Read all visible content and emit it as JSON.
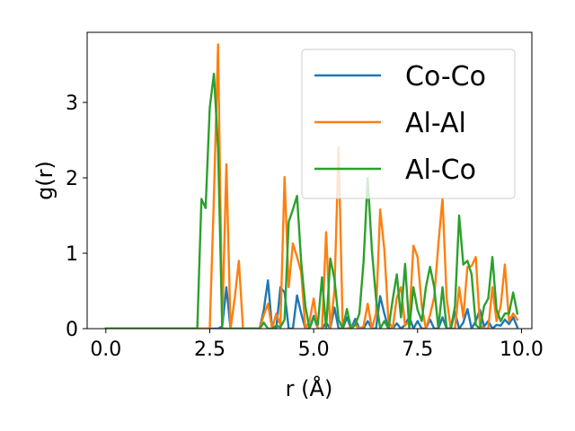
{
  "chart_data": {
    "type": "line",
    "xlabel": "r (Å)",
    "ylabel": "g(r)",
    "xlim": [
      -0.45,
      10.25
    ],
    "ylim": [
      0,
      3.93
    ],
    "xticks": [
      0.0,
      2.5,
      5.0,
      7.5,
      10.0
    ],
    "xtick_labels": [
      "0.0",
      "2.5",
      "5.0",
      "7.5",
      "10.0"
    ],
    "yticks": [
      0,
      1,
      2,
      3
    ],
    "ytick_labels": [
      "0",
      "1",
      "2",
      "3"
    ],
    "grid": false,
    "legend_position": "top-right",
    "series": [
      {
        "name": "Co-Co",
        "color": "#1f77b4",
        "x": [
          0.0,
          2.7,
          2.8,
          2.9,
          3.0,
          3.7,
          3.8,
          3.9,
          4.0,
          4.1,
          4.2,
          4.3,
          4.4,
          4.5,
          4.6,
          4.7,
          4.8,
          4.9,
          5.0,
          5.1,
          5.2,
          5.3,
          5.4,
          5.5,
          5.6,
          5.7,
          5.8,
          5.9,
          6.0,
          6.1,
          6.2,
          6.3,
          6.4,
          6.5,
          6.6,
          6.7,
          6.8,
          6.9,
          7.0,
          7.1,
          7.2,
          7.3,
          7.4,
          7.5,
          7.6,
          7.7,
          7.8,
          7.9,
          8.0,
          8.1,
          8.2,
          8.3,
          8.4,
          8.5,
          8.6,
          8.7,
          8.8,
          8.9,
          9.0,
          9.1,
          9.2,
          9.3,
          9.4,
          9.5,
          9.6,
          9.7,
          9.8,
          9.9
        ],
        "values": [
          0,
          0,
          0.03,
          0.55,
          0,
          0,
          0.25,
          0.64,
          0,
          0,
          0.55,
          0.48,
          0,
          0,
          0.44,
          0.2,
          0,
          0,
          0.17,
          0,
          0,
          0.08,
          0,
          0.28,
          0,
          0,
          0.15,
          0,
          0.13,
          0,
          0,
          0.1,
          0,
          0,
          0.43,
          0.2,
          0,
          0,
          0.07,
          0,
          0.05,
          0.16,
          0,
          0.1,
          0,
          0,
          0.12,
          0,
          0,
          0.15,
          0,
          0,
          0.22,
          0,
          0.08,
          0.26,
          0,
          0.1,
          0.25,
          0.03,
          0.1,
          0,
          0.05,
          0.04,
          0.12,
          0.06,
          0.15,
          0.02
        ]
      },
      {
        "name": "Al-Al",
        "color": "#ff7f0e",
        "x": [
          0.0,
          2.5,
          2.6,
          2.7,
          2.8,
          2.9,
          3.0,
          3.1,
          3.2,
          3.3,
          3.7,
          3.8,
          3.9,
          4.0,
          4.1,
          4.2,
          4.3,
          4.4,
          4.5,
          4.6,
          4.7,
          4.8,
          4.9,
          5.0,
          5.1,
          5.2,
          5.3,
          5.4,
          5.5,
          5.6,
          5.7,
          5.8,
          5.9,
          6.0,
          6.1,
          6.2,
          6.3,
          6.4,
          6.5,
          6.6,
          6.7,
          6.8,
          6.9,
          7.0,
          7.1,
          7.2,
          7.3,
          7.4,
          7.5,
          7.6,
          7.7,
          7.8,
          7.9,
          8.0,
          8.1,
          8.2,
          8.3,
          8.4,
          8.5,
          8.6,
          8.7,
          8.8,
          8.9,
          9.0,
          9.1,
          9.2,
          9.3,
          9.4,
          9.5,
          9.6,
          9.7,
          9.8,
          9.9
        ],
        "values": [
          0,
          0,
          1.75,
          3.77,
          0.05,
          2.18,
          0,
          0.4,
          0.9,
          0,
          0,
          0.18,
          0.33,
          0,
          0.2,
          0.05,
          2.01,
          0.55,
          1.13,
          0.95,
          0.75,
          0,
          0.1,
          0.4,
          0,
          0,
          1.28,
          0,
          0.5,
          2.4,
          0,
          0,
          0.02,
          0.05,
          0,
          0.03,
          0.33,
          0,
          0.2,
          1.58,
          1.05,
          0.1,
          0,
          0.41,
          0.55,
          0.04,
          0.1,
          1.1,
          0.95,
          0.3,
          0,
          0.18,
          0.42,
          1.12,
          1.73,
          0.4,
          0,
          0,
          0.55,
          0.15,
          0.82,
          0.83,
          0.95,
          0.05,
          0,
          0,
          0.55,
          0.1,
          0.3,
          0.85,
          0.1,
          0.2,
          0.12
        ]
      },
      {
        "name": "Al-Co",
        "color": "#2ca02c",
        "x": [
          0.0,
          2.2,
          2.3,
          2.4,
          2.5,
          2.6,
          2.7,
          2.8,
          3.7,
          3.8,
          3.9,
          4.0,
          4.1,
          4.2,
          4.3,
          4.4,
          4.5,
          4.6,
          4.7,
          4.8,
          4.9,
          5.0,
          5.1,
          5.2,
          5.3,
          5.4,
          5.5,
          5.6,
          5.7,
          5.8,
          5.9,
          6.0,
          6.1,
          6.2,
          6.3,
          6.4,
          6.5,
          6.6,
          6.7,
          6.8,
          6.9,
          7.0,
          7.1,
          7.2,
          7.3,
          7.4,
          7.5,
          7.6,
          7.7,
          7.8,
          7.9,
          8.0,
          8.1,
          8.2,
          8.3,
          8.4,
          8.5,
          8.6,
          8.7,
          8.8,
          8.9,
          9.0,
          9.1,
          9.2,
          9.3,
          9.4,
          9.5,
          9.6,
          9.7,
          9.8,
          9.9
        ],
        "values": [
          0,
          0,
          1.72,
          1.6,
          2.93,
          3.38,
          2.4,
          0,
          0,
          0.08,
          0.0,
          0,
          0.04,
          0.02,
          0.12,
          1.42,
          1.58,
          1.76,
          0.88,
          0.3,
          0,
          0.15,
          0.05,
          0.68,
          0,
          0.93,
          0.66,
          0.12,
          0,
          0.26,
          0,
          0.05,
          0.2,
          0.88,
          2.0,
          1.05,
          0.4,
          0,
          0.1,
          0,
          0.38,
          0.72,
          0.15,
          0.86,
          0,
          0.55,
          0.25,
          0.1,
          0.55,
          0.82,
          0.55,
          0,
          0.55,
          0,
          0,
          0.3,
          1.5,
          0.85,
          0.9,
          0.72,
          0.05,
          0,
          0.3,
          0.4,
          0.95,
          0.25,
          0.1,
          0.2,
          0.2,
          0.48,
          0.2
        ]
      }
    ]
  }
}
